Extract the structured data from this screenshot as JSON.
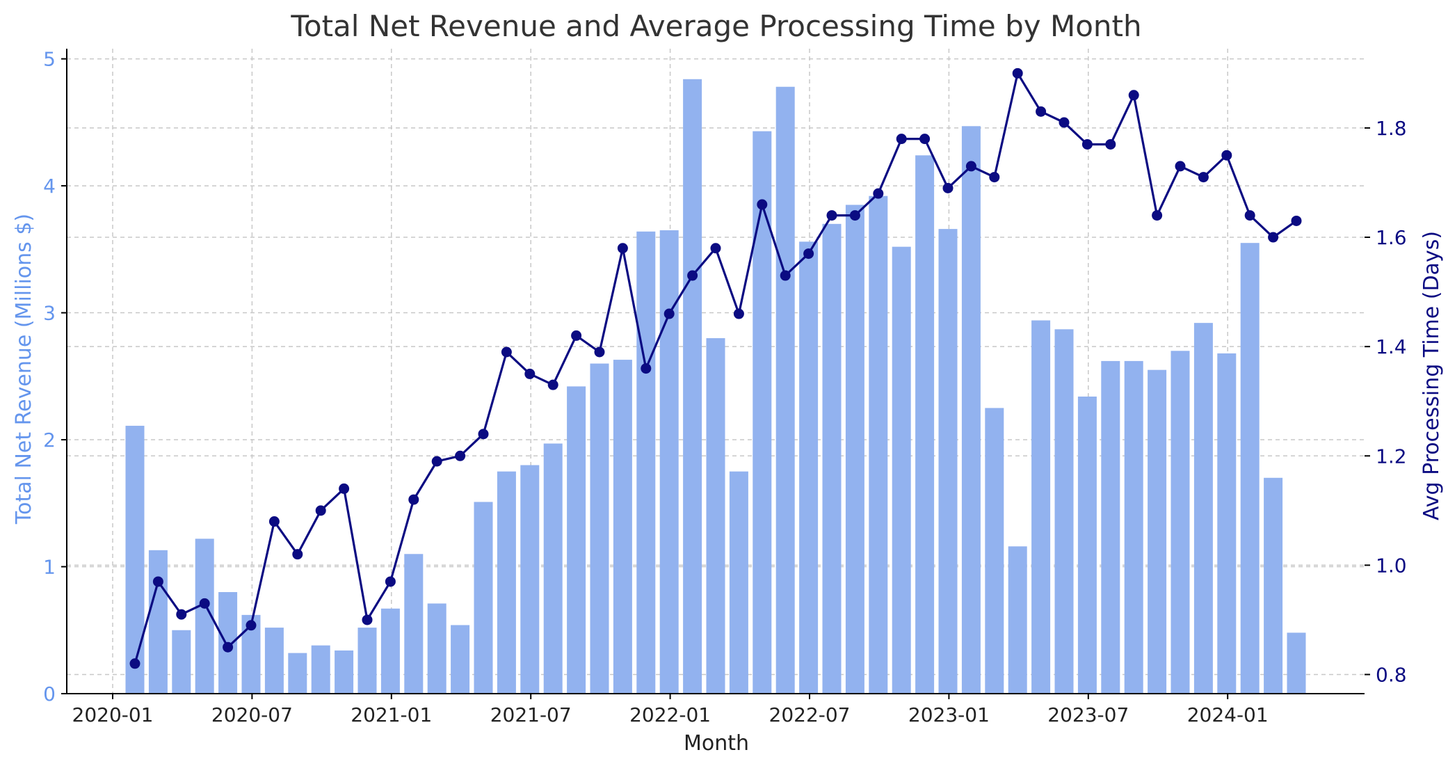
{
  "chart_data": {
    "type": "bar+line",
    "title": "Total Net Revenue and Average Processing Time by Month",
    "xlabel": "Month",
    "ylabel_left": "Total Net Revenue (Millions $)",
    "ylabel_right": "Avg Processing Time (Days)",
    "x_ticks": [
      "2020-01",
      "2020-07",
      "2021-01",
      "2021-07",
      "2022-01",
      "2022-07",
      "2023-01",
      "2023-07",
      "2024-01"
    ],
    "y_left_ticks": [
      "0",
      "1",
      "2",
      "3",
      "4",
      "5"
    ],
    "y_right_ticks": [
      "0.8",
      "1.0",
      "1.2",
      "1.4",
      "1.6",
      "1.8"
    ],
    "ylim_left": [
      0,
      5.08
    ],
    "ylim_right": [
      0.765,
      1.945
    ],
    "grid": true,
    "colors": {
      "bar": "#92b2ef",
      "line": "#0b0b82",
      "left_axis_text": "#6495ed",
      "right_axis_text": "#0b0b82"
    },
    "categories": [
      "2020-01",
      "2020-02",
      "2020-03",
      "2020-04",
      "2020-05",
      "2020-06",
      "2020-07",
      "2020-08",
      "2020-09",
      "2020-10",
      "2020-11",
      "2020-12",
      "2021-01",
      "2021-02",
      "2021-03",
      "2021-04",
      "2021-05",
      "2021-06",
      "2021-07",
      "2021-08",
      "2021-09",
      "2021-10",
      "2021-11",
      "2021-12",
      "2022-01",
      "2022-02",
      "2022-03",
      "2022-04",
      "2022-05",
      "2022-06",
      "2022-07",
      "2022-08",
      "2022-09",
      "2022-10",
      "2022-11",
      "2022-12",
      "2023-01",
      "2023-02",
      "2023-03",
      "2023-04",
      "2023-05",
      "2023-06",
      "2023-07",
      "2023-08",
      "2023-09",
      "2023-10",
      "2023-11",
      "2023-12",
      "2024-01",
      "2024-02",
      "2024-03"
    ],
    "series": [
      {
        "type": "bar",
        "axis": "left",
        "values": [
          2.11,
          1.13,
          0.5,
          1.22,
          0.8,
          0.62,
          0.52,
          0.32,
          0.38,
          0.34,
          0.52,
          0.67,
          1.1,
          0.71,
          0.54,
          1.51,
          1.75,
          1.8,
          1.97,
          2.42,
          2.6,
          2.63,
          3.64,
          3.65,
          4.84,
          2.8,
          1.75,
          4.43,
          4.78,
          3.56,
          3.7,
          3.85,
          3.92,
          3.52,
          4.24,
          3.66,
          4.47,
          2.25,
          1.16,
          2.94,
          2.87,
          2.34,
          2.62,
          2.62,
          2.55,
          2.7,
          2.92,
          2.68,
          3.55,
          1.7,
          0.48
        ]
      },
      {
        "type": "line",
        "axis": "right",
        "values": [
          0.82,
          0.97,
          0.91,
          0.93,
          0.85,
          0.89,
          1.08,
          1.02,
          1.1,
          1.14,
          0.9,
          0.97,
          1.12,
          1.19,
          1.2,
          1.24,
          1.39,
          1.35,
          1.33,
          1.42,
          1.39,
          1.58,
          1.36,
          1.46,
          1.53,
          1.58,
          1.46,
          1.66,
          1.53,
          1.57,
          1.64,
          1.64,
          1.68,
          1.78,
          1.78,
          1.69,
          1.73,
          1.71,
          1.9,
          1.83,
          1.81,
          1.77,
          1.77,
          1.86,
          1.64,
          1.73,
          1.71,
          1.75,
          1.64,
          1.6,
          1.63
        ]
      }
    ]
  }
}
